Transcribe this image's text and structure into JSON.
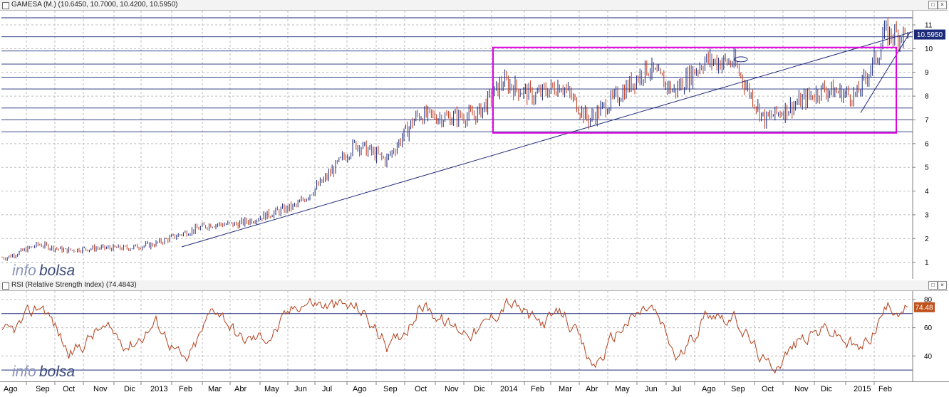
{
  "buttons": {
    "restore": "□",
    "close": "×"
  },
  "colors": {
    "up_bar": "#1c2a7a",
    "down_bar": "#c0391b",
    "trendline": "#1c2a7a",
    "resistance_line": "#1c2a7a",
    "box": "#e000e0",
    "rsi_line": "#b3401c",
    "grid": "#bcbcbc",
    "price_tag_bg": "#1c2a7a",
    "rsi_tag_bg": "#c0511b",
    "watermark": "#3a4a7a"
  },
  "watermark": {
    "part1": "info",
    "part2": "bolsa"
  },
  "price_pane": {
    "title": "GAMESA (M.) (10.6450, 10.7000, 10.4200, 10.5950)",
    "last_price_label": "10.5950"
  },
  "rsi_pane": {
    "title": "RSI (Relative Strength Index) (74.4843)",
    "last_value_label": "74.48"
  },
  "x_axis_labels": [
    "Ago",
    "Sep",
    "Oct",
    "Nov",
    "Dic",
    "2013",
    "Feb",
    "Mar",
    "Abr",
    "May",
    "Jun",
    "Jul",
    "Ago",
    "Sep",
    "Oct",
    "Nov",
    "Dic",
    "2014",
    "Feb",
    "Mar",
    "Abr",
    "May",
    "Jun",
    "Jul",
    "Ago",
    "Sep",
    "Oct",
    "Nov",
    "Dic",
    "2015",
    "Feb"
  ],
  "chart_data": [
    {
      "type": "ohlc",
      "title": "GAMESA (M.) (10.6450, 10.7000, 10.4200, 10.5950)",
      "series_name": "GAMESA (M.)",
      "last": {
        "open": 10.645,
        "high": 10.7,
        "low": 10.42,
        "close": 10.595
      },
      "y_ticks": [
        1,
        2,
        3,
        4,
        5,
        6,
        7,
        8,
        9,
        10,
        11
      ],
      "ylim": [
        0.3,
        11.6
      ],
      "x_categories": [
        "Ago",
        "Sep",
        "Oct",
        "Nov",
        "Dic",
        "2013",
        "Feb",
        "Mar",
        "Abr",
        "May",
        "Jun",
        "Jul",
        "Ago",
        "Sep",
        "Oct",
        "Nov",
        "Dic",
        "2014",
        "Feb",
        "Mar",
        "Abr",
        "May",
        "Jun",
        "Jul",
        "Ago",
        "Sep",
        "Oct",
        "Nov",
        "Dic",
        "2015",
        "Feb"
      ],
      "price_path": [
        [
          "Ago",
          1.2
        ],
        [
          "Sep",
          1.75
        ],
        [
          "Oct",
          1.5
        ],
        [
          "Nov",
          1.6
        ],
        [
          "Dic",
          1.6
        ],
        [
          "2013",
          1.75
        ],
        [
          "Feb",
          2.2
        ],
        [
          "Mar",
          2.6
        ],
        [
          "Abr",
          2.6
        ],
        [
          "May",
          3.0
        ],
        [
          "Jun",
          3.4
        ],
        [
          "Jul",
          4.5
        ],
        [
          "Ago",
          6.0
        ],
        [
          "Sep",
          5.3
        ],
        [
          "Oct",
          7.2
        ],
        [
          "Nov",
          7.1
        ],
        [
          "Dic",
          7.2
        ],
        [
          "2014",
          8.6
        ],
        [
          "Feb",
          8.0
        ],
        [
          "Mar",
          8.5
        ],
        [
          "Abr",
          7.0
        ],
        [
          "May",
          8.0
        ],
        [
          "Jun",
          9.2
        ],
        [
          "Jul",
          8.2
        ],
        [
          "Ago",
          9.5
        ],
        [
          "Sep",
          9.4
        ],
        [
          "Oct",
          7.0
        ],
        [
          "Nov",
          7.7
        ],
        [
          "Dic",
          8.3
        ],
        [
          "2015",
          8.0
        ],
        [
          "Feb",
          10.1
        ]
      ],
      "horizontal_levels": [
        6.5,
        7.0,
        7.5,
        8.3,
        8.8,
        9.35,
        9.9,
        10.5,
        11.3
      ],
      "annotations": {
        "trendline_long": {
          "from": [
            "2013 Feb",
            1.65
          ],
          "to": [
            "2015 Feb",
            10.65
          ]
        },
        "trendline_short": {
          "from": [
            "2015",
            7.3
          ],
          "to": [
            "2015 Feb",
            10.65
          ]
        },
        "range_box": {
          "from": "Dic 2013",
          "to": "Feb 2015",
          "low": 6.45,
          "high": 10.05
        }
      }
    },
    {
      "type": "line",
      "title": "RSI (Relative Strength Index) (74.4843)",
      "series_name": "RSI",
      "last_value": 74.4843,
      "y_ticks": [
        40,
        60,
        80
      ],
      "ylim": [
        22,
        86
      ],
      "reference_levels": [
        30,
        70
      ],
      "x_categories": [
        "Ago",
        "Sep",
        "Oct",
        "Nov",
        "Dic",
        "2013",
        "Feb",
        "Mar",
        "Abr",
        "May",
        "Jun",
        "Jul",
        "Ago",
        "Sep",
        "Oct",
        "Nov",
        "Dic",
        "2014",
        "Feb",
        "Mar",
        "Abr",
        "May",
        "Jun",
        "Jul",
        "Ago",
        "Sep",
        "Oct",
        "Nov",
        "Dic",
        "2015",
        "Feb"
      ],
      "values": [
        55,
        78,
        40,
        60,
        48,
        65,
        32,
        78,
        50,
        55,
        80,
        75,
        74,
        44,
        78,
        60,
        58,
        80,
        62,
        70,
        30,
        62,
        76,
        35,
        74,
        64,
        30,
        52,
        60,
        42,
        74
      ]
    }
  ]
}
